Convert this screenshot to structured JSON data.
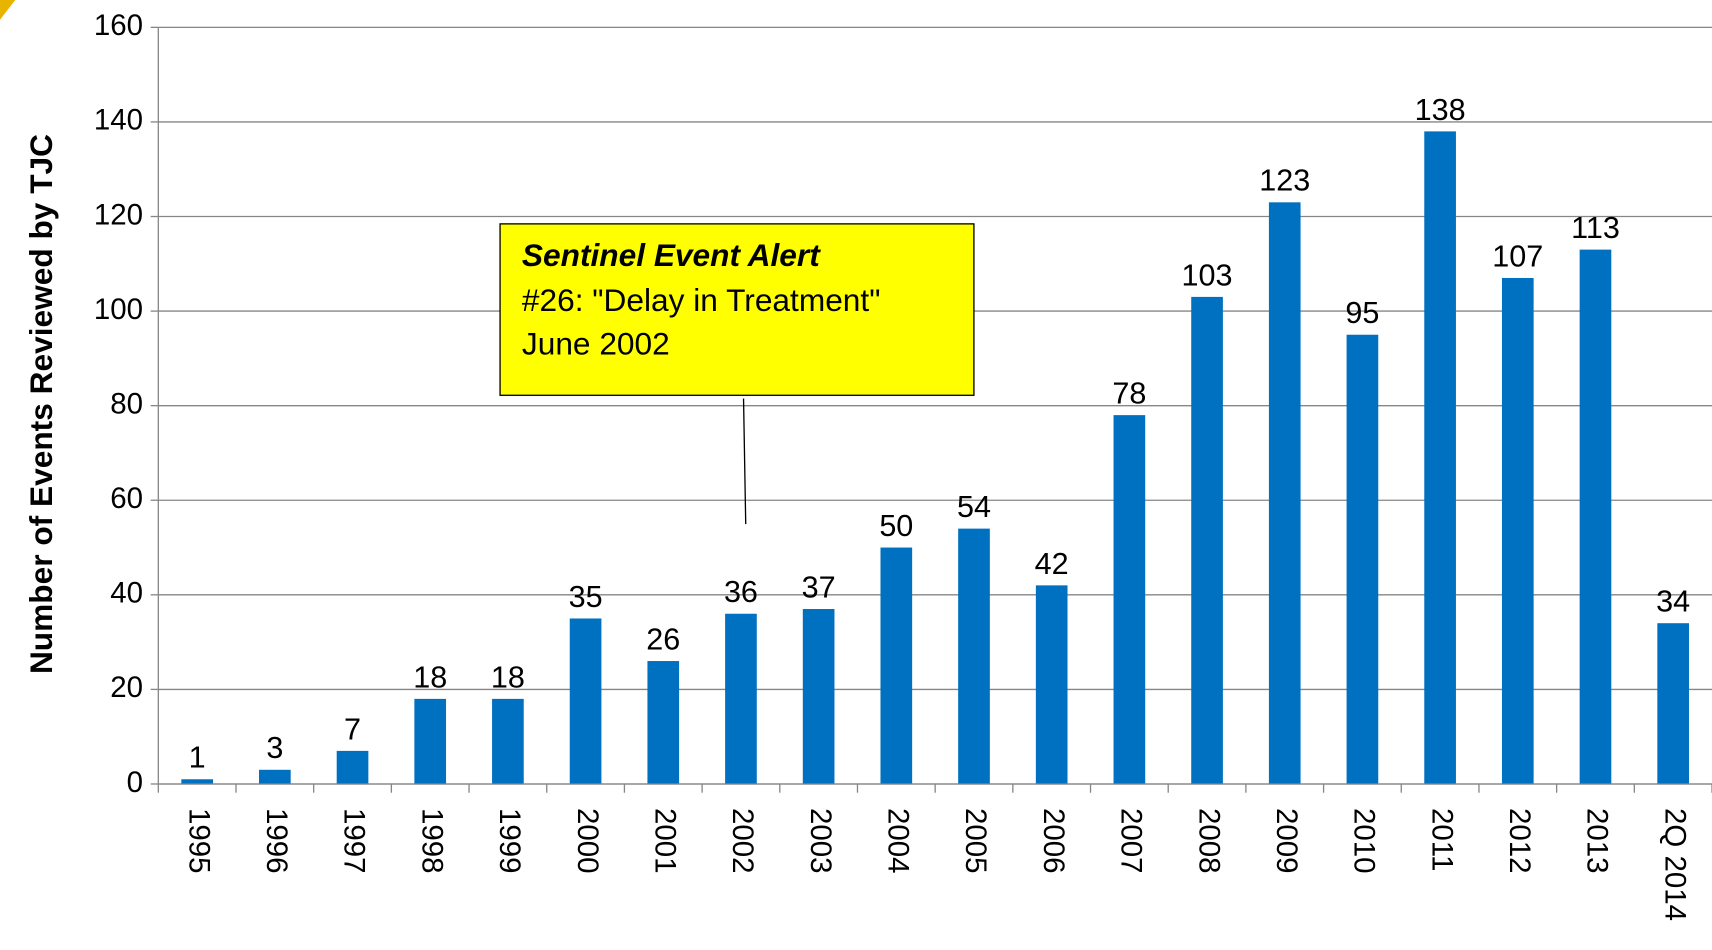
{
  "chart_data": {
    "type": "bar",
    "y_label": "Number of Events Reviewed by TJC",
    "categories": [
      "1995",
      "1996",
      "1997",
      "1998",
      "1999",
      "2000",
      "2001",
      "2002",
      "2003",
      "2004",
      "2005",
      "2006",
      "2007",
      "2008",
      "2009",
      "2010",
      "2011",
      "2012",
      "2013",
      "2Q 2014"
    ],
    "values": [
      1,
      3,
      7,
      18,
      18,
      35,
      26,
      36,
      37,
      50,
      54,
      42,
      78,
      103,
      123,
      95,
      138,
      107,
      113,
      34
    ],
    "color": "#0070c0",
    "ylim": [
      0,
      160
    ],
    "yticks": [
      0,
      20,
      40,
      60,
      80,
      100,
      120,
      140,
      160
    ],
    "grid": true,
    "annotation": {
      "title": "Sentinel Event Alert",
      "lines": [
        "#26: \"Delay in Treatment\"",
        "June 2002"
      ]
    }
  }
}
